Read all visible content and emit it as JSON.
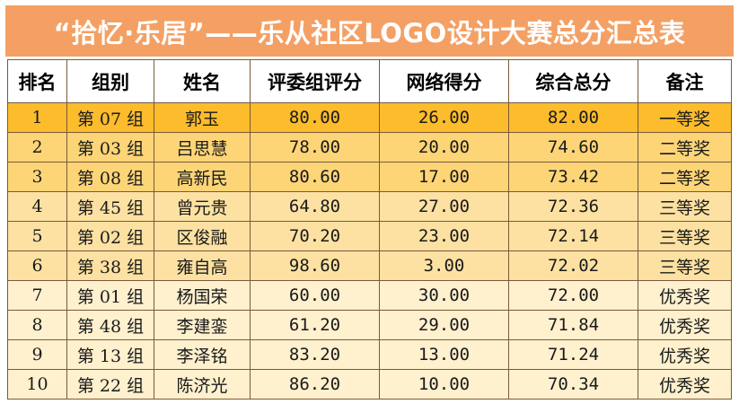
{
  "title": "“拾忆·乐居”——乐从社区LOGO设计大赛总分汇总表",
  "colors": {
    "title_bg": "#f4a064",
    "header_bg": "#ffffff",
    "row_bg": [
      "#fcbc2c",
      "#fdd577",
      "#fdd577",
      "#fde1a2",
      "#fde1a2",
      "#fde1a2",
      "#fff0ce",
      "#fff0ce",
      "#fff0ce",
      "#fff0ce"
    ]
  },
  "table": {
    "headers": [
      "排名",
      "组别",
      "姓名",
      "评委组评分",
      "网络得分",
      "综合总分",
      "备注"
    ],
    "rows": [
      [
        "1",
        "第 07 组",
        "郭玉",
        "80.00",
        "26.00",
        "82.00",
        "一等奖"
      ],
      [
        "2",
        "第 03 组",
        "吕思慧",
        "78.00",
        "20.00",
        "74.60",
        "二等奖"
      ],
      [
        "3",
        "第 08 组",
        "高新民",
        "80.60",
        "17.00",
        "73.42",
        "二等奖"
      ],
      [
        "4",
        "第 45 组",
        "曾元贵",
        "64.80",
        "27.00",
        "72.36",
        "三等奖"
      ],
      [
        "5",
        "第 02 组",
        "区俊融",
        "70.20",
        "23.00",
        "72.14",
        "三等奖"
      ],
      [
        "6",
        "第 38 组",
        "雍自高",
        "98.60",
        "3.00",
        "72.02",
        "三等奖"
      ],
      [
        "7",
        "第 01 组",
        "杨国荣",
        "60.00",
        "30.00",
        "72.00",
        "优秀奖"
      ],
      [
        "8",
        "第 48 组",
        "李建銮",
        "61.20",
        "29.00",
        "71.84",
        "优秀奖"
      ],
      [
        "9",
        "第 13 组",
        "李泽铭",
        "83.20",
        "13.00",
        "71.24",
        "优秀奖"
      ],
      [
        "10",
        "第 22 组",
        "陈济光",
        "86.20",
        "10.00",
        "70.34",
        "优秀奖"
      ]
    ]
  }
}
